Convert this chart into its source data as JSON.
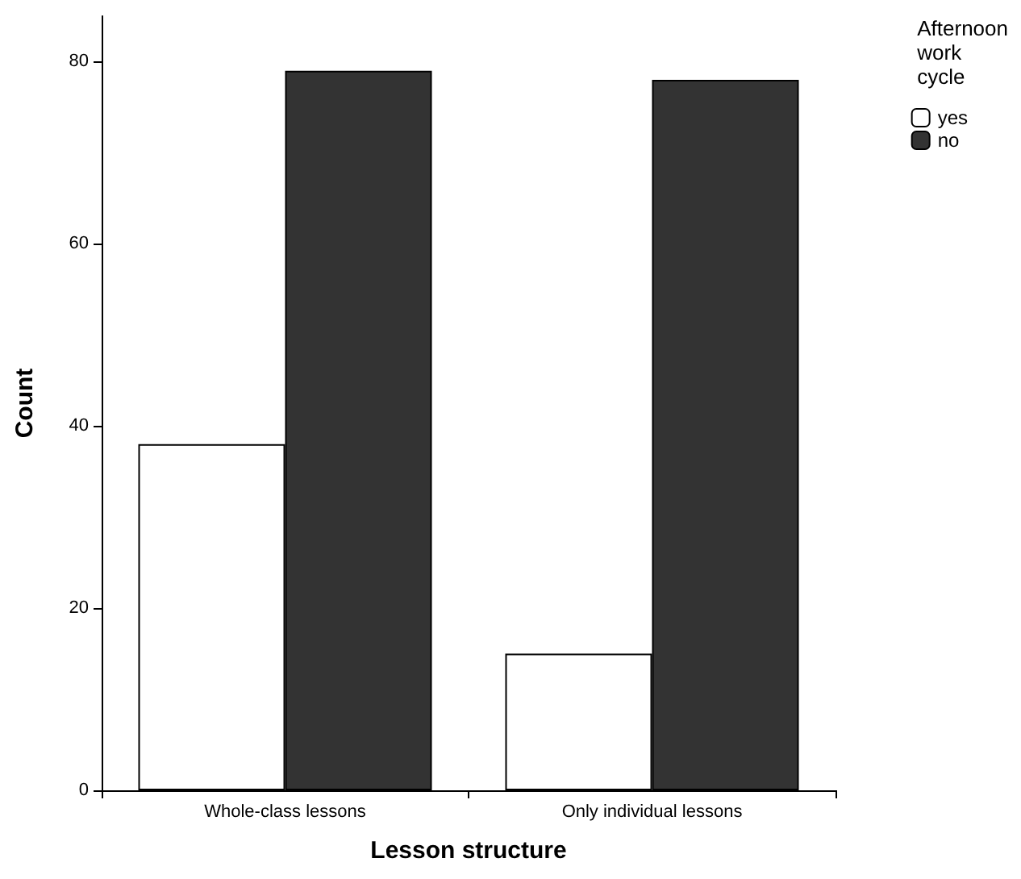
{
  "chart_data": {
    "type": "bar",
    "xlabel": "Lesson structure",
    "ylabel": "Count",
    "legend_title": "Afternoon work cycle",
    "categories": [
      "Whole-class lessons",
      "Only individual lessons"
    ],
    "series": [
      {
        "name": "yes",
        "color": "#ffffff",
        "values": [
          38,
          15
        ]
      },
      {
        "name": "no",
        "color": "#333333",
        "values": [
          79,
          78
        ]
      }
    ],
    "ylim": [
      0,
      85
    ],
    "yticks": [
      0,
      20,
      40,
      60,
      80
    ],
    "grid": false,
    "legend": "top right"
  }
}
